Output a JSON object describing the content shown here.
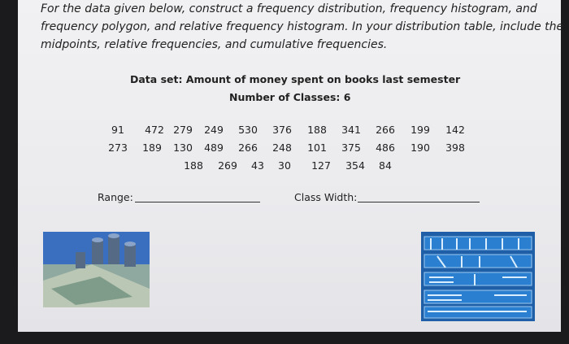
{
  "instructions": [
    "For the data given below, construct a frequency distribution, frequency histogram, and",
    "frequency polygon, and relative frequency histogram.  In your distribution table, include the",
    "midpoints, relative frequencies, and cumulative frequencies."
  ],
  "data_set": {
    "title": "Data set:  Amount of money spent on books last semester",
    "classes": "Number of Classes:  6",
    "rows": [
      [
        "91",
        "472",
        "279",
        "249",
        "530",
        "376",
        "188",
        "341",
        "266",
        "199",
        "142"
      ],
      [
        "273",
        "189",
        "130",
        "489",
        "266",
        "248",
        "101",
        "375",
        "486",
        "190",
        "398"
      ],
      [
        "188",
        "269",
        "43",
        "30",
        "127",
        "354",
        "84"
      ]
    ]
  },
  "fields": {
    "range": "Range:",
    "class_width": "Class Width:"
  }
}
